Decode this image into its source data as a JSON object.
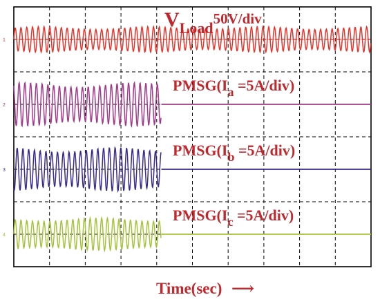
{
  "chart_data": {
    "type": "line",
    "title": "",
    "xlabel": "Time(sec)",
    "xlabel_arrow": "⟶",
    "ylabel": "",
    "grid": true,
    "grid_divisions": {
      "x": 10,
      "y": 8
    },
    "series": [
      {
        "marker": "1",
        "label_main": "V",
        "label_sub": "Load",
        "label_scale": "50V/div",
        "color": "#e8332a",
        "envelope_amplitude_div": 0.35,
        "cycles_across_screen": 62,
        "stop_fraction": 1.0
      },
      {
        "marker": "2",
        "label_main": "PMSG(I",
        "label_sub": "a",
        "label_scale": " =5A/div)",
        "color": "#a2398a",
        "envelope_amplitude_div": 0.6,
        "cycles_across_screen": 62,
        "stop_fraction": 0.413
      },
      {
        "marker": "3",
        "label_main": "PMSG(I",
        "label_sub": "b",
        "label_scale": " =5A/div)",
        "color": "#3a2a8c",
        "envelope_amplitude_div": 0.6,
        "cycles_across_screen": 62,
        "stop_fraction": 0.413
      },
      {
        "marker": "4",
        "label_main": "PMSG(I",
        "label_sub": "c",
        "label_scale": " =5A/div)",
        "color": "#a3c43a",
        "envelope_amplitude_div": 0.45,
        "cycles_across_screen": 62,
        "stop_fraction": 0.413
      }
    ]
  }
}
